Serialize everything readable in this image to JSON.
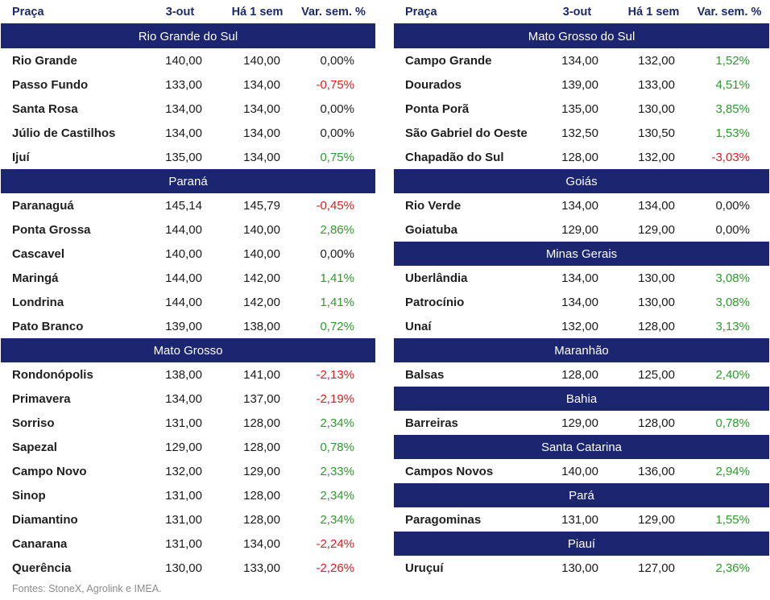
{
  "header": {
    "col_name": "Praça",
    "col_current": "3-out",
    "col_prev": "Há 1 sem",
    "col_var": "Var. sem. %"
  },
  "left_panel": [
    {
      "group": "Rio Grande do Sul",
      "rows": [
        {
          "name": "Rio Grande",
          "current": "140,00",
          "prev": "140,00",
          "var": "0,00%",
          "trend": "zero"
        },
        {
          "name": "Passo Fundo",
          "current": "133,00",
          "prev": "134,00",
          "var": "-0,75%",
          "trend": "neg"
        },
        {
          "name": "Santa Rosa",
          "current": "134,00",
          "prev": "134,00",
          "var": "0,00%",
          "trend": "zero"
        },
        {
          "name": "Júlio de Castilhos",
          "current": "134,00",
          "prev": "134,00",
          "var": "0,00%",
          "trend": "zero"
        },
        {
          "name": "Ijuí",
          "current": "135,00",
          "prev": "134,00",
          "var": "0,75%",
          "trend": "pos"
        }
      ]
    },
    {
      "group": "Paraná",
      "rows": [
        {
          "name": "Paranaguá",
          "current": "145,14",
          "prev": "145,79",
          "var": "-0,45%",
          "trend": "neg"
        },
        {
          "name": "Ponta Grossa",
          "current": "144,00",
          "prev": "140,00",
          "var": "2,86%",
          "trend": "pos"
        },
        {
          "name": "Cascavel",
          "current": "140,00",
          "prev": "140,00",
          "var": "0,00%",
          "trend": "zero"
        },
        {
          "name": "Maringá",
          "current": "144,00",
          "prev": "142,00",
          "var": "1,41%",
          "trend": "pos"
        },
        {
          "name": "Londrina",
          "current": "144,00",
          "prev": "142,00",
          "var": "1,41%",
          "trend": "pos"
        },
        {
          "name": "Pato Branco",
          "current": "139,00",
          "prev": "138,00",
          "var": "0,72%",
          "trend": "pos"
        }
      ]
    },
    {
      "group": "Mato Grosso",
      "rows": [
        {
          "name": "Rondonópolis",
          "current": "138,00",
          "prev": "141,00",
          "var": "-2,13%",
          "trend": "neg"
        },
        {
          "name": "Primavera",
          "current": "134,00",
          "prev": "137,00",
          "var": "-2,19%",
          "trend": "neg"
        },
        {
          "name": "Sorriso",
          "current": "131,00",
          "prev": "128,00",
          "var": "2,34%",
          "trend": "pos"
        },
        {
          "name": "Sapezal",
          "current": "129,00",
          "prev": "128,00",
          "var": "0,78%",
          "trend": "pos"
        },
        {
          "name": "Campo Novo",
          "current": "132,00",
          "prev": "129,00",
          "var": "2,33%",
          "trend": "pos"
        },
        {
          "name": "Sinop",
          "current": "131,00",
          "prev": "128,00",
          "var": "2,34%",
          "trend": "pos"
        },
        {
          "name": "Diamantino",
          "current": "131,00",
          "prev": "128,00",
          "var": "2,34%",
          "trend": "pos"
        },
        {
          "name": "Canarana",
          "current": "131,00",
          "prev": "134,00",
          "var": "-2,24%",
          "trend": "neg"
        },
        {
          "name": "Querência",
          "current": "130,00",
          "prev": "133,00",
          "var": "-2,26%",
          "trend": "neg"
        }
      ]
    }
  ],
  "right_panel": [
    {
      "group": "Mato Grosso do Sul",
      "rows": [
        {
          "name": "Campo Grande",
          "current": "134,00",
          "prev": "132,00",
          "var": "1,52%",
          "trend": "pos"
        },
        {
          "name": "Dourados",
          "current": "139,00",
          "prev": "133,00",
          "var": "4,51%",
          "trend": "pos"
        },
        {
          "name": "Ponta Porã",
          "current": "135,00",
          "prev": "130,00",
          "var": "3,85%",
          "trend": "pos"
        },
        {
          "name": "São Gabriel do Oeste",
          "current": "132,50",
          "prev": "130,50",
          "var": "1,53%",
          "trend": "pos"
        },
        {
          "name": "Chapadão do Sul",
          "current": "128,00",
          "prev": "132,00",
          "var": "-3,03%",
          "trend": "neg"
        }
      ]
    },
    {
      "group": "Goiás",
      "rows": [
        {
          "name": "Rio Verde",
          "current": "134,00",
          "prev": "134,00",
          "var": "0,00%",
          "trend": "zero"
        },
        {
          "name": "Goiatuba",
          "current": "129,00",
          "prev": "129,00",
          "var": "0,00%",
          "trend": "zero"
        }
      ]
    },
    {
      "group": "Minas Gerais",
      "rows": [
        {
          "name": "Uberlândia",
          "current": "134,00",
          "prev": "130,00",
          "var": "3,08%",
          "trend": "pos"
        },
        {
          "name": "Patrocínio",
          "current": "134,00",
          "prev": "130,00",
          "var": "3,08%",
          "trend": "pos"
        },
        {
          "name": "Unaí",
          "current": "132,00",
          "prev": "128,00",
          "var": "3,13%",
          "trend": "pos"
        }
      ]
    },
    {
      "group": "Maranhão",
      "rows": [
        {
          "name": "Balsas",
          "current": "128,00",
          "prev": "125,00",
          "var": "2,40%",
          "trend": "pos"
        }
      ]
    },
    {
      "group": "Bahia",
      "rows": [
        {
          "name": "Barreiras",
          "current": "129,00",
          "prev": "128,00",
          "var": "0,78%",
          "trend": "pos"
        }
      ]
    },
    {
      "group": "Santa Catarina",
      "rows": [
        {
          "name": "Campos Novos",
          "current": "140,00",
          "prev": "136,00",
          "var": "2,94%",
          "trend": "pos"
        }
      ]
    },
    {
      "group": "Pará",
      "rows": [
        {
          "name": "Paragominas",
          "current": "131,00",
          "prev": "129,00",
          "var": "1,55%",
          "trend": "pos"
        }
      ]
    },
    {
      "group": "Piauí",
      "rows": [
        {
          "name": "Uruçuí",
          "current": "130,00",
          "prev": "127,00",
          "var": "2,36%",
          "trend": "pos"
        }
      ]
    }
  ],
  "footer": {
    "source": "Fontes: StoneX, Agrolink e IMEA."
  },
  "colors": {
    "group_bg": "#1b2570",
    "header_text": "#1b2a6b",
    "positive": "#2e9a2e",
    "negative": "#e21b1b"
  }
}
